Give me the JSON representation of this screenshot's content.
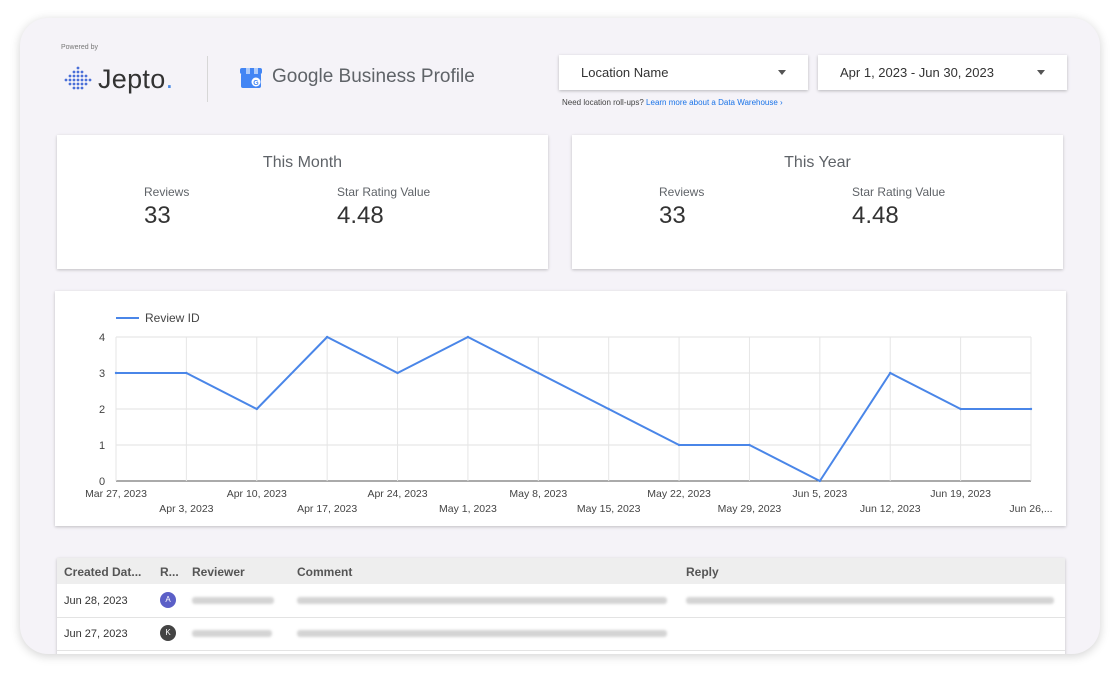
{
  "header": {
    "powered_by": "Powered by",
    "brand": "Jepto",
    "brand_dot": ".",
    "partner_strong": "Google",
    "partner_rest": " Business Profile"
  },
  "filters": {
    "location_label": "Location Name",
    "date_range": "Apr 1, 2023 - Jun 30, 2023",
    "hint_text": "Need location roll-ups? ",
    "hint_link": "Learn more about a Data Warehouse ›"
  },
  "kpis": {
    "month": {
      "title": "This Month",
      "reviews_label": "Reviews",
      "reviews": "33",
      "rating_label": "Star Rating Value",
      "rating": "4.48"
    },
    "year": {
      "title": "This Year",
      "reviews_label": "Reviews",
      "reviews": "33",
      "rating_label": "Star Rating Value",
      "rating": "4.48"
    }
  },
  "chart_data": {
    "type": "line",
    "series": [
      {
        "name": "Review ID",
        "color": "#4a86e8",
        "values": [
          3,
          3,
          2,
          4,
          3,
          4,
          3,
          2,
          1,
          1,
          0,
          3,
          2,
          2
        ]
      }
    ],
    "x": [
      "Mar 27, 2023",
      "Apr 3, 2023",
      "Apr 10, 2023",
      "Apr 17, 2023",
      "Apr 24, 2023",
      "May 1, 2023",
      "May 8, 2023",
      "May 15, 2023",
      "May 22, 2023",
      "May 29, 2023",
      "Jun 5, 2023",
      "Jun 12, 2023",
      "Jun 19, 2023",
      "Jun 26,..."
    ],
    "yticks": [
      0,
      1,
      2,
      3,
      4
    ],
    "ylim": [
      0,
      4
    ],
    "legend": "top-left",
    "grid": true
  },
  "table": {
    "headers": [
      "Created Dat...",
      "R...",
      "Reviewer",
      "Comment",
      "Reply"
    ],
    "rows": [
      {
        "date": "Jun 28, 2023",
        "avatar": "A",
        "avatar_color": "#5b5fc7"
      },
      {
        "date": "Jun 27, 2023",
        "avatar": "K",
        "avatar_color": "#444444"
      }
    ]
  }
}
